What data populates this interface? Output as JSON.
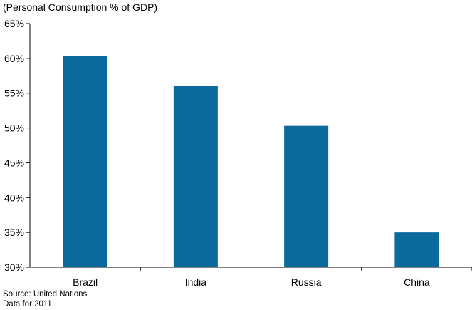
{
  "chart_data": {
    "type": "bar",
    "title": "",
    "ylabel": "(Personal Consumption % of GDP)",
    "xlabel": "",
    "categories": [
      "Brazil",
      "India",
      "Russia",
      "China"
    ],
    "values": [
      60.3,
      56.0,
      50.3,
      35.0
    ],
    "ylim": [
      30,
      65
    ],
    "yticks": [
      30,
      35,
      40,
      45,
      50,
      55,
      60,
      65
    ],
    "ytick_labels": [
      "30%",
      "35%",
      "40%",
      "45%",
      "50%",
      "55%",
      "60%",
      "65%"
    ],
    "bar_color": "#0a6a9e",
    "grid": false,
    "legend": "none"
  },
  "footnote": {
    "source": "Source: United Nations",
    "data_year": "Data for 2011"
  }
}
